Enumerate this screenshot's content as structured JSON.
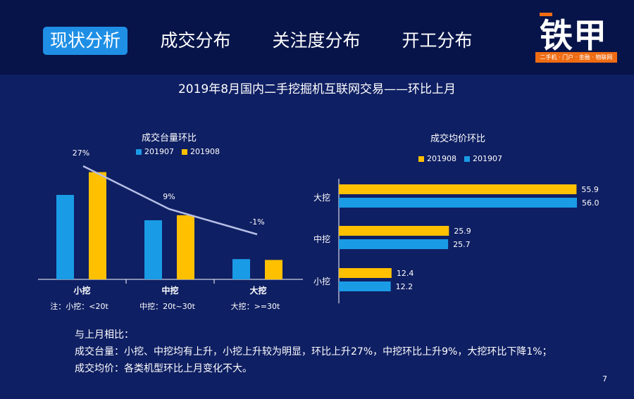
{
  "nav": {
    "tabs": [
      {
        "label": "现状分析",
        "active": true
      },
      {
        "label": "成交分布",
        "active": false
      },
      {
        "label": "关注度分布",
        "active": false
      },
      {
        "label": "开工分布",
        "active": false
      }
    ]
  },
  "logo": {
    "text": "铁甲",
    "tagline": "二手机 · 门户 · 金融 · 物联网"
  },
  "main_title": "2019年8月国内二手挖掘机互联网交易——环比上月",
  "colors": {
    "blue": "#1a9be6",
    "yellow": "#ffc000",
    "background": "#0f1f63",
    "trend_line": "#b6bfe6"
  },
  "chart_data": [
    {
      "type": "bar",
      "title": "成交台量环比",
      "categories": [
        "小挖",
        "中挖",
        "大挖"
      ],
      "category_notes": [
        "注：小挖：<20t",
        "中挖：20t~30t",
        "大挖：>=30t"
      ],
      "series": [
        {
          "name": "201907",
          "values": [
            100,
            70,
            24
          ],
          "color": "#1a9be6"
        },
        {
          "name": "201908",
          "values": [
            127,
            76,
            23
          ],
          "color": "#ffc000"
        }
      ],
      "trend": {
        "labels": [
          "27%",
          "9%",
          "-1%"
        ],
        "values": [
          27,
          9,
          -1
        ]
      },
      "legend": "top"
    },
    {
      "type": "bar",
      "orientation": "horizontal",
      "title": "成交均价环比",
      "categories": [
        "大挖",
        "中挖",
        "小挖"
      ],
      "series": [
        {
          "name": "201908",
          "values": [
            55.9,
            25.9,
            12.4
          ],
          "color": "#ffc000"
        },
        {
          "name": "201907",
          "values": [
            56.0,
            25.7,
            12.2
          ],
          "color": "#1a9be6"
        }
      ],
      "xlim": [
        0,
        60
      ],
      "legend": "top"
    }
  ],
  "summary": {
    "heading": "与上月相比：",
    "line1": "成交台量：小挖、中挖均有上升，小挖上升较为明显，环比上升27%，中挖环比上升9%，大挖环比下降1%；",
    "line2": "成交均价：各类机型环比上月变化不大。"
  },
  "page_number": "7"
}
